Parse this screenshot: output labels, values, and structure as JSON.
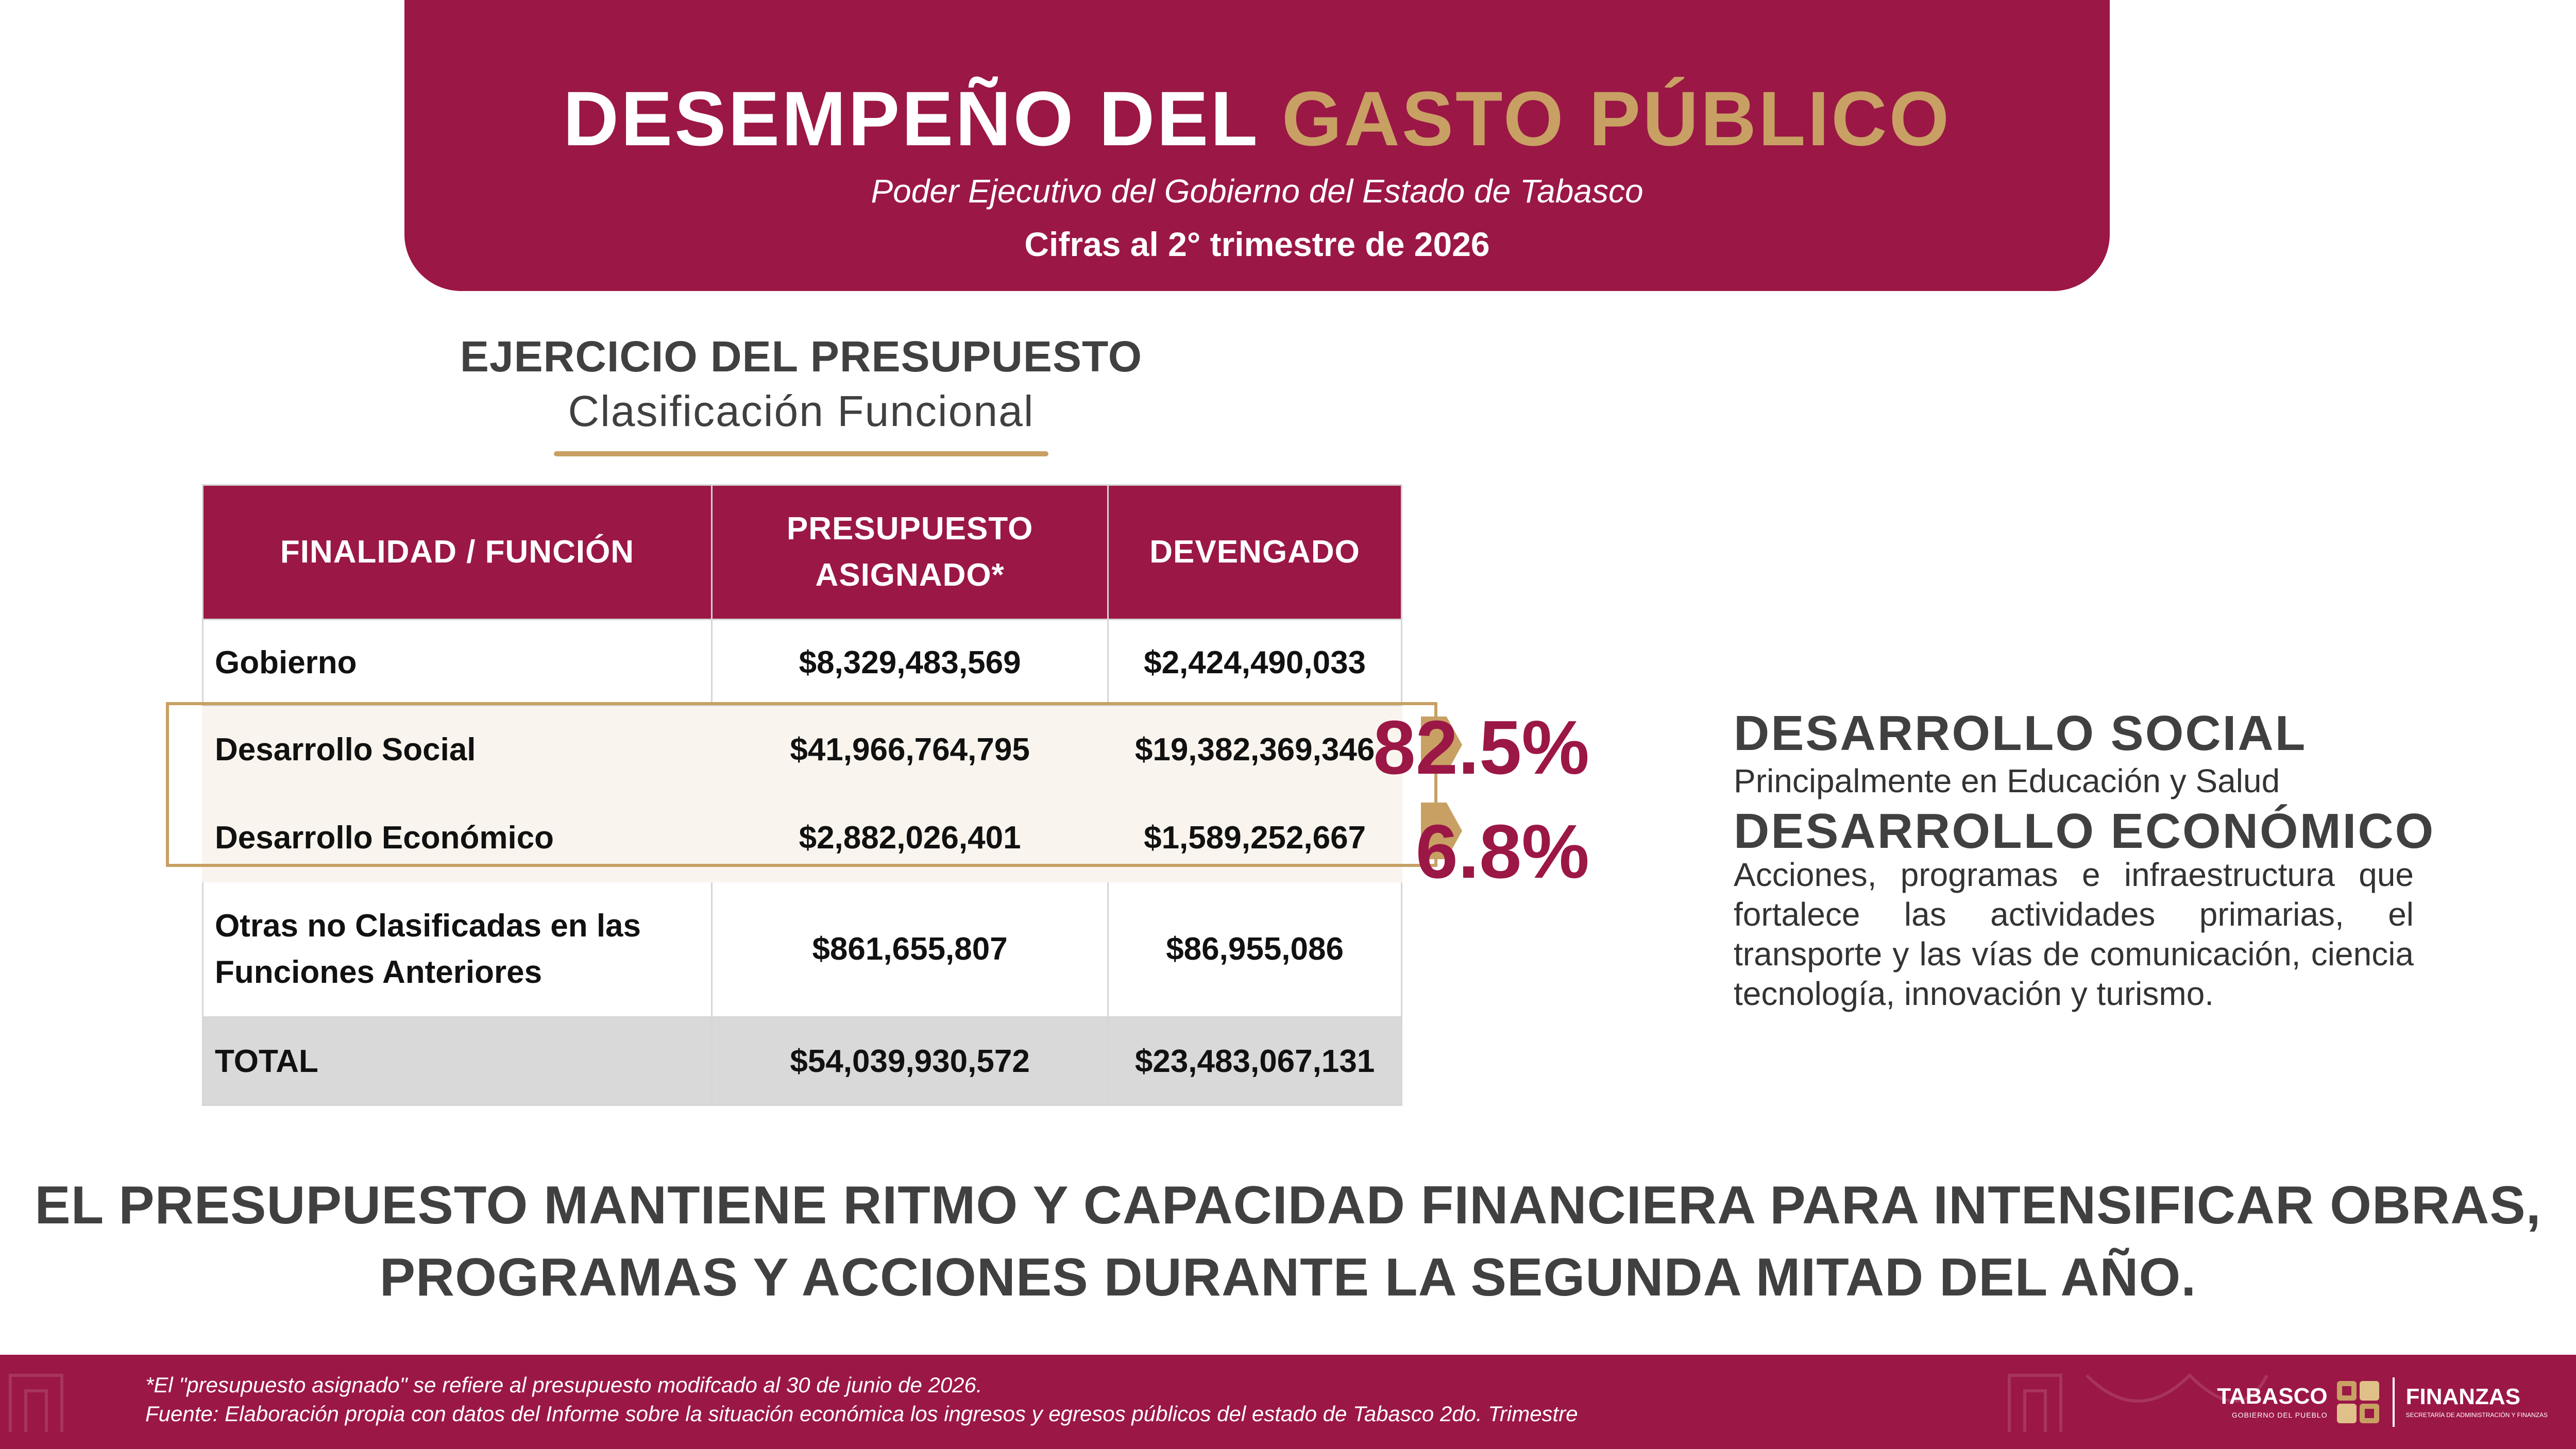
{
  "header": {
    "title_part1": "DESEMPEÑO DEL ",
    "title_part2": "GASTO PÚBLICO",
    "subtitle": "Poder Ejecutivo del Gobierno del Estado de Tabasco",
    "cifras": "Cifras al 2° trimestre de 2026"
  },
  "section": {
    "title": "EJERCICIO DEL PRESUPUESTO",
    "subtitle": "Clasificación Funcional"
  },
  "table": {
    "columns": [
      "FINALIDAD / FUNCIÓN",
      "PRESUPUESTO ASIGNADO*",
      "DEVENGADO"
    ],
    "rows": [
      {
        "label": "Gobierno",
        "asignado": "$8,329,483,569",
        "devengado": "$2,424,490,033"
      },
      {
        "label": "Desarrollo Social",
        "asignado": "$41,966,764,795",
        "devengado": "$19,382,369,346"
      },
      {
        "label": "Desarrollo Económico",
        "asignado": "$2,882,026,401",
        "devengado": "$1,589,252,667"
      },
      {
        "label": "Otras no Clasificadas en las Funciones Anteriores",
        "asignado": "$861,655,807",
        "devengado": "$86,955,086"
      },
      {
        "label": "TOTAL",
        "asignado": "$54,039,930,572",
        "devengado": "$23,483,067,131"
      }
    ]
  },
  "highlights": [
    {
      "percent": "82.5%",
      "title": "DESARROLLO SOCIAL",
      "description": "Principalmente en Educación y Salud"
    },
    {
      "percent": "6.8%",
      "title": "DESARROLLO ECONÓMICO",
      "description": "Acciones, programas e infraestructura que fortalece las actividades primarias, el transporte y las vías de comunicación, ciencia tecnología, innovación y turismo."
    }
  ],
  "headline": "EL PRESUPUESTO MANTIENE RITMO Y CAPACIDAD FINANCIERA PARA INTENSIFICAR OBRAS, PROGRAMAS Y ACCIONES DURANTE LA SEGUNDA MITAD DEL AÑO.",
  "footer": {
    "note": "*El \"presupuesto asignado\" se refiere al presupuesto modifcado al 30 de junio de 2026.",
    "source": "Fuente: Elaboración propia con datos del Informe sobre la situación económica los ingresos y egresos públicos del estado de Tabasco 2do. Trimestre",
    "logo_tabasco": "TABASCO",
    "logo_tabasco_sub": "GOBIERNO DEL PUEBLO",
    "logo_finanzas": "FINANZAS",
    "logo_finanzas_sub": "SECRETARÍA DE ADMINISTRACIÓN Y FINANZAS"
  },
  "colors": {
    "brand": "#9b1746",
    "gold": "#c8a064",
    "highlight_fill": "#f9f5ee"
  }
}
